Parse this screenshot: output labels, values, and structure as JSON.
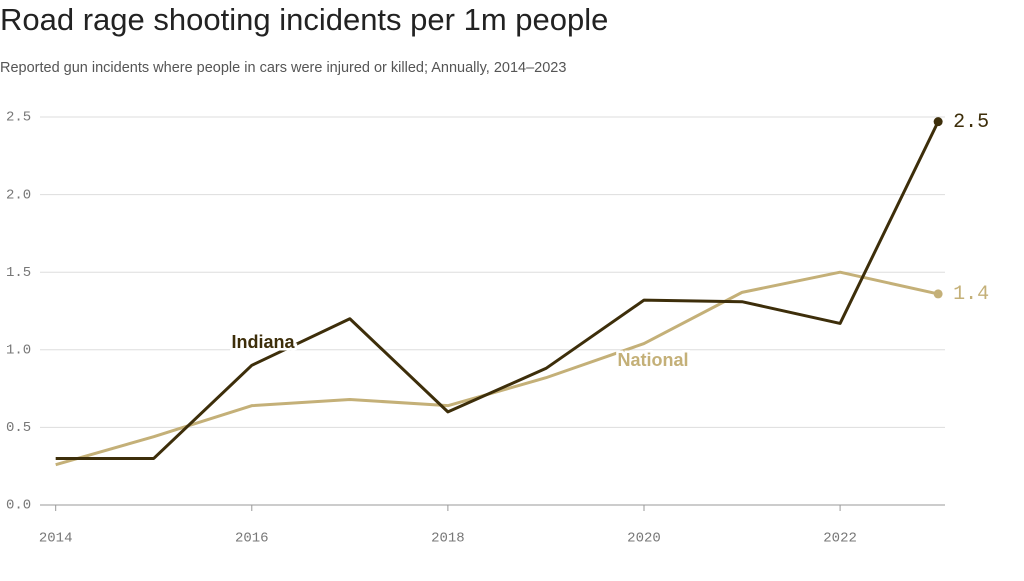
{
  "chart_data": {
    "type": "line",
    "title": "Road rage shooting incidents per 1m people",
    "subtitle": "Reported gun incidents where people in cars were injured or killed; Annually, 2014–2023",
    "x": [
      2014,
      2015,
      2016,
      2017,
      2018,
      2019,
      2020,
      2021,
      2022,
      2023
    ],
    "series": [
      {
        "name": "National",
        "color": "#c4b078",
        "values": [
          0.26,
          0.44,
          0.64,
          0.68,
          0.64,
          0.82,
          1.04,
          1.37,
          1.5,
          1.36
        ],
        "value_labels": [
          null,
          null,
          null,
          null,
          null,
          null,
          null,
          null,
          null,
          "1.4"
        ]
      },
      {
        "name": "Indiana",
        "color": "#3d2e0a",
        "values": [
          0.3,
          0.3,
          0.9,
          1.2,
          0.6,
          0.88,
          1.32,
          1.31,
          1.17,
          2.47
        ],
        "value_labels": [
          null,
          null,
          null,
          null,
          null,
          null,
          null,
          null,
          null,
          "2.5"
        ]
      }
    ],
    "xlim": [
      2013.84,
      2023.07
    ],
    "xticks": [
      2014,
      2016,
      2018,
      2020,
      2022
    ],
    "ylim": [
      0,
      2.5
    ],
    "yticks": [
      {
        "value": 0,
        "label": "0.0"
      },
      0.5,
      {
        "value": 1,
        "label": "1.0"
      },
      1.5,
      {
        "value": 2,
        "label": "2.0"
      },
      2.5
    ],
    "grid": true
  }
}
